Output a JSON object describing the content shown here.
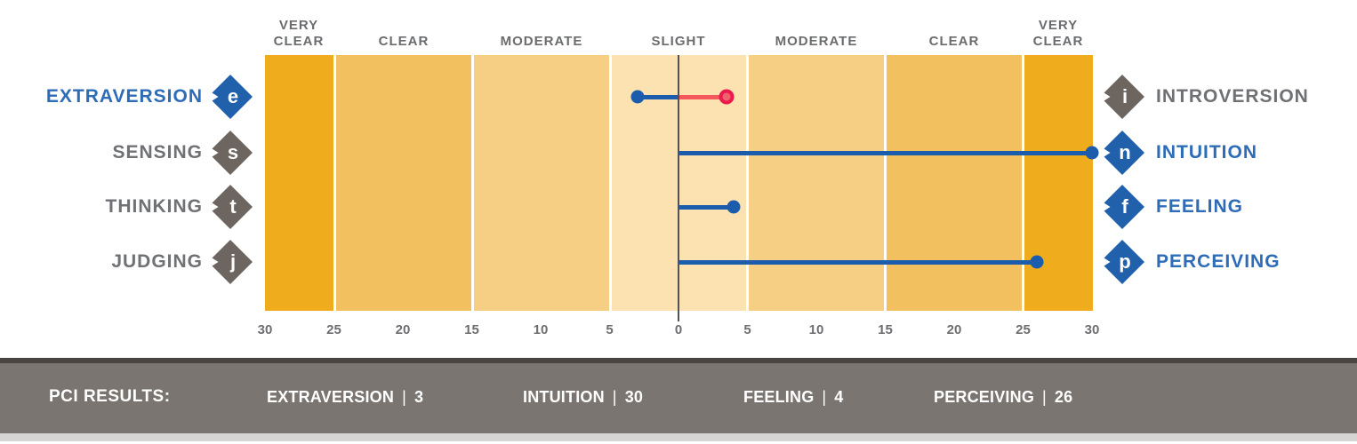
{
  "colors": {
    "preferred_blue": "#2e6cb7",
    "line_blue": "#1c5cac",
    "unpreferred_gray": "#6f7175",
    "diamond_gray": "#6d6660",
    "header_gray": "#6b6c6e",
    "band_very_clear": "#efac1d",
    "band_clear": "#f2c05e",
    "band_moderate": "#f6cf85",
    "band_slight": "#fbe2b0",
    "center_line": "#515254",
    "red_line": "#f4575c",
    "red_ring": "#ec1a4e",
    "bar_background": "#7b7571",
    "bar_text": "#ffffff"
  },
  "chart_data": {
    "type": "diverging-dot-plot",
    "description": "MBTI preference clarity index chart: dot distance from midline shows clarity of preference for each dichotomy",
    "axis": {
      "min": -30,
      "max": 30,
      "tick_step": 5,
      "tick_labels": [
        "30",
        "25",
        "20",
        "15",
        "10",
        "5",
        "0",
        "5",
        "10",
        "15",
        "20",
        "25",
        "30"
      ]
    },
    "clarity_bands": [
      {
        "label": "VERY CLEAR"
      },
      {
        "label": "CLEAR"
      },
      {
        "label": "MODERATE"
      },
      {
        "label": "SLIGHT"
      },
      {
        "label": "MODERATE"
      },
      {
        "label": "CLEAR"
      },
      {
        "label": "VERY CLEAR"
      }
    ],
    "rows": [
      {
        "dimension": "extraversion-introversion",
        "left": {
          "label": "EXTRAVERSION",
          "letter": "e",
          "preferred": true
        },
        "right": {
          "label": "INTROVERSION",
          "letter": "i",
          "preferred": false
        },
        "score": 3,
        "score_side": "left",
        "secondary_marker": {
          "value": 3.5,
          "side": "right",
          "style": "open-red"
        }
      },
      {
        "dimension": "sensing-intuition",
        "left": {
          "label": "SENSING",
          "letter": "s",
          "preferred": false
        },
        "right": {
          "label": "INTUITION",
          "letter": "n",
          "preferred": true
        },
        "score": 30,
        "score_side": "right"
      },
      {
        "dimension": "thinking-feeling",
        "left": {
          "label": "THINKING",
          "letter": "t",
          "preferred": false
        },
        "right": {
          "label": "FEELING",
          "letter": "f",
          "preferred": true
        },
        "score": 4,
        "score_side": "right"
      },
      {
        "dimension": "judging-perceiving",
        "left": {
          "label": "JUDGING",
          "letter": "j",
          "preferred": false
        },
        "right": {
          "label": "PERCEIVING",
          "letter": "p",
          "preferred": true
        },
        "score": 26,
        "score_side": "right"
      }
    ]
  },
  "pci_bar": {
    "title": "PCI RESULTS:",
    "separator": "|",
    "results": [
      {
        "label": "EXTRAVERSION",
        "value": "3"
      },
      {
        "label": "INTUITION",
        "value": "30"
      },
      {
        "label": "FEELING",
        "value": "4"
      },
      {
        "label": "PERCEIVING",
        "value": "26"
      }
    ]
  }
}
